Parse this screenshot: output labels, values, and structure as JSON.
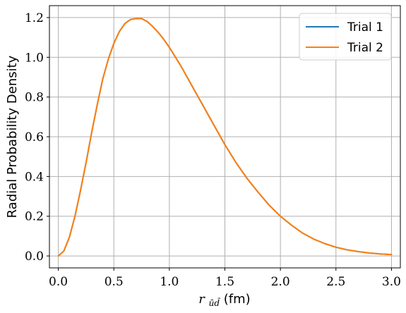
{
  "chart_data": {
    "type": "line",
    "title": "",
    "xlabel": "r_{\\bar{u}\\bar{d}}(fm)",
    "xlabel_main": "r",
    "xlabel_sub": "ūd̄",
    "xlabel_unit": "(fm)",
    "ylabel": "Radial Probability Density",
    "xlim": [
      -0.08,
      3.08
    ],
    "ylim": [
      -0.06,
      1.26
    ],
    "xticks": [
      0.0,
      0.5,
      1.0,
      1.5,
      2.0,
      2.5,
      3.0
    ],
    "xtick_labels": [
      "0.0",
      "0.5",
      "1.0",
      "1.5",
      "2.0",
      "2.5",
      "3.0"
    ],
    "yticks": [
      0.0,
      0.2,
      0.4,
      0.6,
      0.8,
      1.0,
      1.2
    ],
    "ytick_labels": [
      "0.0",
      "0.2",
      "0.4",
      "0.6",
      "0.8",
      "1.0",
      "1.2"
    ],
    "grid": true,
    "legend_position": "top-right",
    "x": [
      0.0,
      0.05,
      0.1,
      0.15,
      0.2,
      0.25,
      0.3,
      0.35,
      0.4,
      0.45,
      0.5,
      0.55,
      0.6,
      0.65,
      0.7,
      0.75,
      0.8,
      0.85,
      0.9,
      0.95,
      1.0,
      1.1,
      1.2,
      1.3,
      1.4,
      1.5,
      1.6,
      1.7,
      1.8,
      1.9,
      2.0,
      2.1,
      2.2,
      2.3,
      2.4,
      2.5,
      2.6,
      2.7,
      2.8,
      2.9,
      3.0
    ],
    "series": [
      {
        "name": "Trial 1",
        "color": "#1f77b4",
        "values": [
          0.0,
          0.025,
          0.095,
          0.2,
          0.33,
          0.47,
          0.62,
          0.76,
          0.89,
          0.99,
          1.07,
          1.13,
          1.17,
          1.19,
          1.195,
          1.195,
          1.18,
          1.155,
          1.125,
          1.09,
          1.05,
          0.96,
          0.86,
          0.76,
          0.66,
          0.56,
          0.47,
          0.39,
          0.32,
          0.255,
          0.2,
          0.155,
          0.115,
          0.085,
          0.062,
          0.044,
          0.031,
          0.022,
          0.015,
          0.01,
          0.007
        ]
      },
      {
        "name": "Trial 2",
        "color": "#ff7f0e",
        "values": [
          0.0,
          0.025,
          0.095,
          0.2,
          0.33,
          0.47,
          0.62,
          0.76,
          0.89,
          0.99,
          1.07,
          1.13,
          1.17,
          1.19,
          1.195,
          1.195,
          1.18,
          1.155,
          1.125,
          1.09,
          1.05,
          0.96,
          0.86,
          0.76,
          0.66,
          0.56,
          0.47,
          0.39,
          0.32,
          0.255,
          0.2,
          0.155,
          0.115,
          0.085,
          0.062,
          0.044,
          0.031,
          0.022,
          0.015,
          0.01,
          0.007
        ]
      }
    ]
  }
}
